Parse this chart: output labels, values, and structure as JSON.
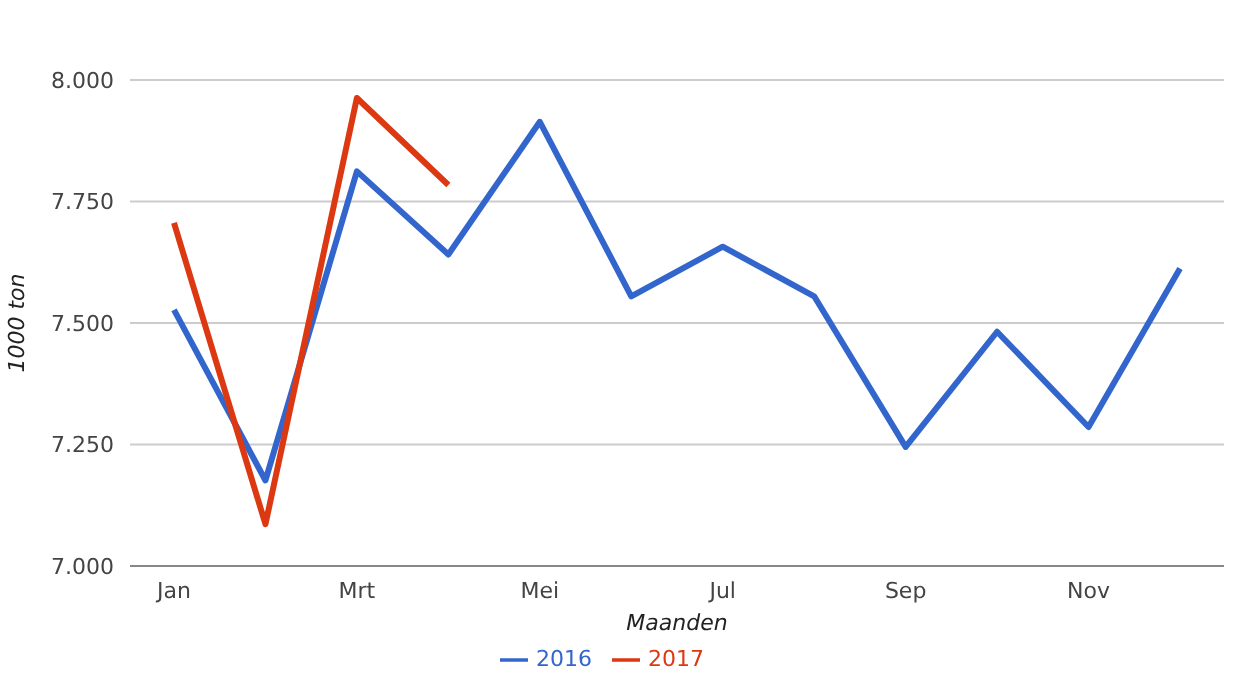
{
  "chart_data": {
    "type": "line",
    "xlabel": "Maanden",
    "ylabel": "1000 ton",
    "categories": [
      "Jan",
      null,
      "Mrt",
      null,
      "Mei",
      null,
      "Jul",
      null,
      "Sep",
      null,
      "Nov",
      null
    ],
    "series": [
      {
        "name": "2016",
        "color": "#3366cc",
        "values": [
          7527,
          7176,
          7812,
          7641,
          7914,
          7555,
          7657,
          7555,
          7245,
          7482,
          7286,
          7612
        ]
      },
      {
        "name": "2017",
        "color": "#dc3912",
        "values": [
          7706,
          7086,
          7963,
          7784,
          null,
          null,
          null,
          null,
          null,
          null,
          null,
          null
        ]
      }
    ],
    "ylim": [
      7000,
      8000
    ],
    "yticks": [
      {
        "value": 7000,
        "label": "7.000"
      },
      {
        "value": 7250,
        "label": "7.250"
      },
      {
        "value": 7500,
        "label": "7.500"
      },
      {
        "value": 7750,
        "label": "7.750"
      },
      {
        "value": 8000,
        "label": "8.000"
      }
    ],
    "grid": "y",
    "legend": "bottom",
    "line_style": "solid"
  }
}
